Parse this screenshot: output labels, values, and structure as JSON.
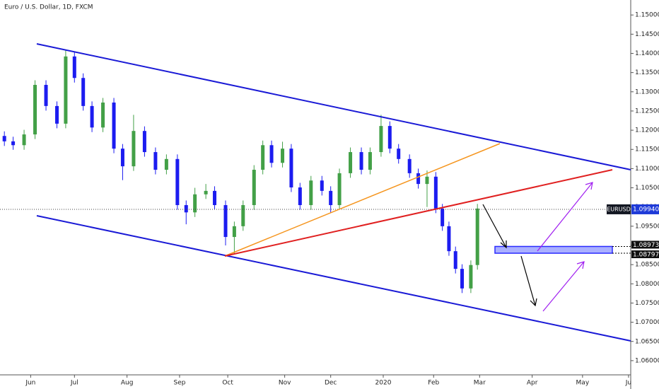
{
  "chart_data": {
    "type": "candlestick",
    "title": "Euro / U.S. Dollar, 1D, FXCM",
    "x": [
      2,
      6,
      11,
      16,
      21,
      26,
      30,
      34,
      38,
      42,
      47,
      52,
      56,
      61,
      66,
      71,
      76,
      81,
      85,
      89,
      94,
      98,
      103,
      107,
      111,
      116,
      120,
      124,
      129,
      133,
      137,
      142,
      147,
      151,
      155,
      160,
      165,
      169,
      174,
      178,
      182,
      187,
      191,
      195,
      199,
      202,
      205,
      208,
      211,
      215,
      218
    ],
    "open": [
      1.1185,
      1.1171,
      1.1161,
      1.1189,
      1.1318,
      1.1263,
      1.1217,
      1.1392,
      1.1336,
      1.1263,
      1.1207,
      1.1272,
      1.1152,
      1.1106,
      1.1198,
      1.1143,
      1.1097,
      1.1125,
      1.1005,
      1.0986,
      1.1033,
      1.1042,
      1.1005,
      1.0922,
      1.095,
      1.1005,
      1.1097,
      1.1161,
      1.1115,
      1.1152,
      1.1051,
      1.1005,
      1.1069,
      1.1042,
      1.1005,
      1.1088,
      1.1143,
      1.1097,
      1.1143,
      1.1211,
      1.1152,
      1.1125,
      1.1088,
      1.106,
      1.1079,
      1.0996,
      1.095,
      1.0885,
      1.0839,
      1.0788,
      1.0849
    ],
    "high": [
      1.1197,
      1.1183,
      1.1201,
      1.133,
      1.133,
      1.1275,
      1.141,
      1.1404,
      1.1348,
      1.1275,
      1.1284,
      1.1284,
      1.1164,
      1.124,
      1.121,
      1.1155,
      1.1137,
      1.1137,
      1.1017,
      1.105,
      1.106,
      1.1054,
      1.1017,
      1.0962,
      1.1017,
      1.1109,
      1.1173,
      1.1173,
      1.117,
      1.1164,
      1.1063,
      1.1081,
      1.1081,
      1.1054,
      1.11,
      1.1155,
      1.1155,
      1.1155,
      1.124,
      1.1223,
      1.1164,
      1.1137,
      1.11,
      1.1095,
      1.1091,
      1.1008,
      1.0962,
      1.0897,
      1.0851,
      1.0861,
      1.1008
    ],
    "low": [
      1.1159,
      1.1149,
      1.1149,
      1.1177,
      1.1251,
      1.1205,
      1.1205,
      1.1324,
      1.1251,
      1.1195,
      1.1195,
      1.114,
      1.107,
      1.1094,
      1.1131,
      1.1085,
      1.1085,
      1.0993,
      1.0955,
      1.0974,
      1.1021,
      1.0993,
      1.09,
      1.0879,
      1.0938,
      1.0993,
      1.1085,
      1.1103,
      1.1103,
      1.1039,
      1.0993,
      1.0993,
      1.103,
      1.0985,
      1.0993,
      1.1076,
      1.1085,
      1.1085,
      1.1131,
      1.114,
      1.1113,
      1.1076,
      1.1048,
      1.1,
      1.0984,
      1.0938,
      1.0873,
      1.0827,
      1.0776,
      1.0776,
      1.0837
    ],
    "close": [
      1.1171,
      1.1161,
      1.1189,
      1.1318,
      1.1263,
      1.1217,
      1.1392,
      1.1336,
      1.1263,
      1.1207,
      1.1272,
      1.1152,
      1.1106,
      1.1198,
      1.1143,
      1.1097,
      1.1125,
      1.1005,
      1.0986,
      1.1033,
      1.1042,
      1.1005,
      1.0922,
      1.095,
      1.1005,
      1.1097,
      1.1161,
      1.1115,
      1.1152,
      1.1051,
      1.1005,
      1.1069,
      1.1042,
      1.1005,
      1.1088,
      1.1143,
      1.1097,
      1.1143,
      1.1211,
      1.1152,
      1.1125,
      1.1088,
      1.106,
      1.1079,
      1.0996,
      1.095,
      1.0885,
      1.0839,
      1.0788,
      1.0849,
      1.0996
    ],
    "up_color": "#43a047",
    "down_color": "#1c1cf0",
    "xlim": [
      0,
      288
    ],
    "xticks": [
      {
        "value": 14,
        "label": "Jun"
      },
      {
        "value": 34,
        "label": "Jul"
      },
      {
        "value": 58,
        "label": "Aug"
      },
      {
        "value": 82,
        "label": "Sep"
      },
      {
        "value": 104,
        "label": "Oct"
      },
      {
        "value": 130,
        "label": "Nov"
      },
      {
        "value": 151,
        "label": "Dec"
      },
      {
        "value": 175,
        "label": "2020"
      },
      {
        "value": 198,
        "label": "Feb"
      },
      {
        "value": 219,
        "label": "Mar"
      },
      {
        "value": 243,
        "label": "Apr"
      },
      {
        "value": 266,
        "label": "May"
      },
      {
        "value": 287,
        "label": "Ju"
      }
    ],
    "ylim": [
      1.0563,
      1.1539
    ],
    "yticks": [
      {
        "value": 1.06,
        "label": "1.06000"
      },
      {
        "value": 1.065,
        "label": "1.06500"
      },
      {
        "value": 1.07,
        "label": "1.07000"
      },
      {
        "value": 1.075,
        "label": "1.07500"
      },
      {
        "value": 1.08,
        "label": "1.08000"
      },
      {
        "value": 1.085,
        "label": "1.08500"
      },
      {
        "value": 1.09,
        "label": "1.09000"
      },
      {
        "value": 1.095,
        "label": "1.09500"
      },
      {
        "value": 1.1,
        "label": "1.10000"
      },
      {
        "value": 1.105,
        "label": "1.10500"
      },
      {
        "value": 1.11,
        "label": "1.11000"
      },
      {
        "value": 1.115,
        "label": "1.11500"
      },
      {
        "value": 1.12,
        "label": "1.12000"
      },
      {
        "value": 1.125,
        "label": "1.12500"
      },
      {
        "value": 1.13,
        "label": "1.13000"
      },
      {
        "value": 1.135,
        "label": "1.13500"
      },
      {
        "value": 1.14,
        "label": "1.14000"
      },
      {
        "value": 1.145,
        "label": "1.14500"
      },
      {
        "value": 1.15,
        "label": "1.15000"
      }
    ],
    "last_price": {
      "symbol": "EURUSD",
      "value": 1.0994,
      "label": "1.09940"
    },
    "zone": [
      {
        "value": 1.08973,
        "label": "1.08973"
      },
      {
        "value": 1.08797,
        "label": "1.08797"
      }
    ]
  }
}
